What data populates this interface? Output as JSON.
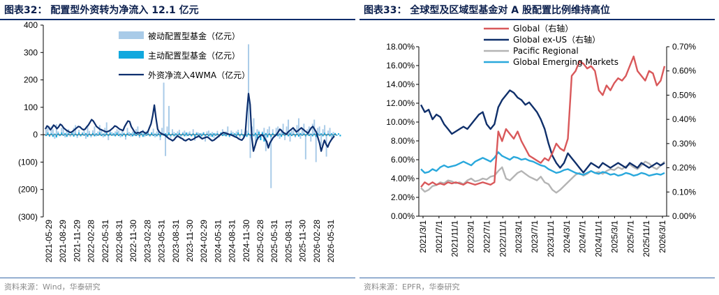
{
  "left": {
    "title": "图表32：  配置型外资转为净流入 12.1 亿元",
    "source": "资料来源：Wind，华泰研究",
    "chart_data": {
      "type": "bar+line",
      "yticks": [
        "400",
        "300",
        "200",
        "100",
        "0",
        "(100)",
        "(200)",
        "(300)"
      ],
      "ylim": [
        -300,
        400
      ],
      "xticks": [
        "2021-05-29",
        "2021-08-29",
        "2021-11-29",
        "2022-02-28",
        "2022-05-31",
        "2022-08-31",
        "2022-11-30",
        "2023-02-28",
        "2023-05-31",
        "2023-08-31",
        "2023-11-30",
        "2024-02-29",
        "2024-05-31",
        "2024-08-31",
        "2024-11-30",
        "2025-02-28",
        "2025-05-31",
        "2025-08-31",
        "2025-11-30",
        "2026-02-28",
        "2026-05-31"
      ],
      "legend_position": "top-right",
      "series": [
        {
          "name": "被动配置型基金（亿元）",
          "type": "bar",
          "color": "#a9cbe8",
          "values": [
            18,
            25,
            -8,
            30,
            20,
            -15,
            38,
            12,
            -5,
            25,
            30,
            -10,
            15,
            20,
            -8,
            10,
            25,
            35,
            -12,
            18,
            -6,
            10,
            22,
            -15,
            30,
            14,
            -10,
            16,
            30,
            -6,
            12,
            35,
            20,
            -10,
            25,
            45,
            -20,
            15,
            10,
            -5,
            12,
            20,
            15,
            -10,
            16,
            8,
            -18,
            25,
            10,
            -8,
            12,
            -5,
            20,
            30,
            -12,
            10,
            18,
            -8,
            14,
            9,
            -6,
            10,
            22,
            -10,
            12,
            15,
            -20,
            25,
            190,
            -78,
            30,
            105,
            -12,
            20,
            10,
            -5,
            12,
            18,
            -8,
            10,
            15,
            -6,
            8,
            12,
            -5,
            20,
            -22,
            10,
            8,
            -14,
            6,
            10,
            -25,
            12,
            15,
            -8,
            10,
            -12,
            6,
            14,
            -10,
            8,
            20,
            -5,
            12,
            30,
            -10,
            15,
            10,
            -8,
            12,
            18,
            -12,
            20,
            -6,
            10,
            15,
            330,
            -85,
            30,
            60,
            -40,
            20,
            15,
            -10,
            12,
            25,
            -60,
            20,
            30,
            -195,
            20,
            -10,
            25,
            30,
            -15,
            20,
            40,
            -20,
            30,
            55,
            -25,
            15,
            20,
            -10,
            35,
            60,
            -15,
            25,
            40,
            -90,
            20,
            30,
            -25,
            40,
            55,
            -100,
            25,
            30,
            -40,
            20,
            35,
            -80,
            15,
            25,
            -15,
            10
          ]
        },
        {
          "name": "主动配置型基金（亿元）",
          "type": "bar",
          "color": "#11a8de",
          "values": [
            -5,
            8,
            -6,
            5,
            -8,
            4,
            -10,
            6,
            -5,
            8,
            -4,
            6,
            -8,
            5,
            -3,
            6,
            -7,
            4,
            -5,
            8,
            -6,
            5,
            -4,
            6,
            -8,
            4,
            -5,
            6,
            -6,
            5,
            -4,
            8,
            -5,
            4,
            -6,
            6,
            -5,
            7,
            -4,
            5,
            -6,
            8,
            -5,
            4,
            -6,
            5,
            -7,
            6,
            -4,
            5,
            -6,
            8,
            -5,
            4,
            -6,
            5,
            -8,
            6,
            -4,
            5,
            -6,
            7,
            -5,
            4,
            -6,
            5,
            -8,
            6,
            -4,
            5,
            -6,
            8,
            -5,
            4,
            -6,
            5,
            -7,
            6,
            -4,
            5,
            -6,
            8,
            -5,
            4,
            -6,
            5,
            -8,
            6,
            -4,
            5,
            -6,
            7,
            -5,
            4,
            -6,
            5,
            -8,
            6,
            -4,
            5,
            -6,
            8,
            -5,
            4,
            -6,
            5,
            -7,
            6,
            -4,
            5,
            -6,
            8,
            -5,
            4,
            -6,
            5,
            -8,
            6,
            -4,
            5,
            -6,
            7,
            -15,
            10,
            -20,
            8,
            -25,
            6,
            -10,
            5,
            -8,
            6,
            -5,
            4,
            -6,
            5,
            -8,
            6,
            -4,
            5,
            -6,
            8,
            -5,
            4,
            -6,
            5,
            -7,
            6,
            -4,
            5,
            -6,
            8,
            -5,
            4,
            -6,
            5,
            -8,
            6,
            -4,
            5,
            -6,
            7,
            -5,
            4,
            -6,
            5,
            -8,
            6,
            -4,
            5,
            -6
          ]
        },
        {
          "name": "外资净流入4WMA（亿元）",
          "type": "line",
          "color": "#0d2f6e",
          "values": [
            20,
            32,
            28,
            18,
            25,
            35,
            30,
            22,
            28,
            38,
            34,
            25,
            20,
            15,
            12,
            8,
            10,
            15,
            20,
            25,
            30,
            28,
            22,
            18,
            20,
            28,
            35,
            45,
            55,
            50,
            40,
            30,
            25,
            20,
            18,
            15,
            12,
            10,
            12,
            15,
            20,
            25,
            32,
            30,
            25,
            20,
            18,
            15,
            30,
            40,
            50,
            48,
            30,
            20,
            10,
            5,
            8,
            6,
            10,
            12,
            8,
            5,
            10,
            25,
            40,
            70,
            108,
            60,
            20,
            10,
            5,
            2,
            0,
            -5,
            -10,
            -15,
            -18,
            -22,
            -18,
            -10,
            -5,
            -8,
            -12,
            -15,
            -20,
            -22,
            -18,
            -15,
            -20,
            -18,
            -15,
            -10,
            -8,
            -5,
            -10,
            -15,
            -12,
            -10,
            -8,
            -12,
            -18,
            -22,
            -20,
            -15,
            -10,
            -5,
            0,
            5,
            8,
            6,
            4,
            2,
            0,
            -2,
            -5,
            -8,
            -10,
            -15,
            -18,
            -20,
            -12,
            0,
            80,
            150,
            110,
            -10,
            -60,
            -40,
            -20,
            -10,
            -5,
            0,
            -5,
            -15,
            -25,
            -48,
            -30,
            -20,
            -10,
            -5,
            0,
            10,
            20,
            15,
            8,
            5,
            2,
            10,
            15,
            20,
            25,
            18,
            10,
            15,
            20,
            25,
            20,
            15,
            10,
            5,
            15,
            25,
            30,
            20,
            10,
            -10,
            -30,
            -60,
            -40,
            -20,
            -35,
            -45,
            -30,
            -20,
            -12,
            -5
          ]
        }
      ]
    }
  },
  "right": {
    "title": "图表33：  全球型及区域型基金对 A 股配置比例维持高位",
    "source": "资料来源：EPFR，华泰研究",
    "chart_data": {
      "type": "line",
      "yticks_left": [
        "18.00%",
        "16.00%",
        "14.00%",
        "12.00%",
        "10.00%",
        "8.00%",
        "6.00%",
        "4.00%",
        "2.00%",
        "0.00%"
      ],
      "ylim_left": [
        0,
        18
      ],
      "yticks_right": [
        "0.70%",
        "0.60%",
        "0.50%",
        "0.40%",
        "0.30%",
        "0.20%",
        "0.10%",
        "0.00%"
      ],
      "ylim_right": [
        0,
        0.7
      ],
      "xticks": [
        "2021/3/1",
        "2021/7/1",
        "2021/11/1",
        "2022/3/1",
        "2022/7/1",
        "2022/11/1",
        "2023/3/1",
        "2023/7/1",
        "2023/11/1",
        "2024/3/1",
        "2024/7/1",
        "2024/11/1",
        "2025/3/1",
        "2025/7/1",
        "2025/11/1",
        "2026/3/1"
      ],
      "legend_position": "top-left",
      "series": [
        {
          "name": "Global（右轴）",
          "axis": "right",
          "color": "#d9585a",
          "values": [
            0.12,
            0.14,
            0.13,
            0.14,
            0.13,
            0.135,
            0.13,
            0.14,
            0.135,
            0.14,
            0.135,
            0.13,
            0.14,
            0.135,
            0.13,
            0.135,
            0.14,
            0.135,
            0.13,
            0.14,
            0.35,
            0.31,
            0.36,
            0.34,
            0.32,
            0.35,
            0.31,
            0.28,
            0.25,
            0.24,
            0.23,
            0.22,
            0.24,
            0.23,
            0.26,
            0.3,
            0.28,
            0.27,
            0.32,
            0.58,
            0.6,
            0.64,
            0.63,
            0.61,
            0.62,
            0.6,
            0.52,
            0.5,
            0.54,
            0.52,
            0.55,
            0.57,
            0.56,
            0.58,
            0.62,
            0.66,
            0.6,
            0.58,
            0.56,
            0.6,
            0.59,
            0.54,
            0.56,
            0.62
          ]
        },
        {
          "name": "Global ex-US（右轴）",
          "axis": "right",
          "color": "#0f2f6a",
          "values": [
            0.46,
            0.43,
            0.44,
            0.4,
            0.42,
            0.41,
            0.38,
            0.36,
            0.34,
            0.35,
            0.36,
            0.37,
            0.36,
            0.38,
            0.4,
            0.42,
            0.43,
            0.38,
            0.36,
            0.38,
            0.45,
            0.48,
            0.5,
            0.52,
            0.51,
            0.49,
            0.48,
            0.46,
            0.47,
            0.45,
            0.43,
            0.4,
            0.36,
            0.3,
            0.25,
            0.22,
            0.2,
            0.22,
            0.26,
            0.24,
            0.22,
            0.2,
            0.18,
            0.2,
            0.22,
            0.21,
            0.2,
            0.22,
            0.21,
            0.2,
            0.21,
            0.22,
            0.21,
            0.2,
            0.22,
            0.21,
            0.2,
            0.22,
            0.21,
            0.2,
            0.21,
            0.22,
            0.21,
            0.22
          ]
        },
        {
          "name": "Pacific Regional",
          "axis": "left",
          "color": "#b4b4b4",
          "values": [
            3.0,
            2.6,
            2.8,
            3.2,
            3.3,
            3.6,
            3.5,
            3.8,
            3.7,
            3.5,
            3.6,
            3.4,
            3.8,
            4.0,
            3.7,
            3.8,
            4.0,
            3.9,
            4.2,
            4.3,
            4.8,
            5.2,
            4.0,
            3.8,
            4.2,
            4.6,
            4.8,
            4.5,
            4.2,
            4.0,
            3.8,
            4.2,
            3.6,
            3.4,
            2.8,
            2.5,
            2.8,
            3.2,
            3.6,
            4.0,
            4.4,
            4.6,
            4.3,
            4.5,
            4.8,
            4.6,
            4.7,
            4.5,
            4.8,
            5.0,
            4.9,
            5.2,
            5.0,
            5.3,
            5.5,
            5.2,
            5.0,
            5.4,
            5.8,
            5.6,
            5.2,
            5.0,
            5.4,
            5.8
          ]
        },
        {
          "name": "Global Emerging Markets",
          "axis": "left",
          "color": "#29a8dc",
          "values": [
            5.0,
            4.6,
            4.7,
            5.0,
            4.8,
            5.2,
            5.4,
            5.2,
            5.3,
            5.4,
            5.6,
            5.8,
            5.6,
            5.4,
            5.8,
            6.0,
            6.2,
            6.0,
            5.8,
            6.2,
            6.8,
            6.4,
            6.2,
            6.0,
            6.3,
            6.2,
            6.0,
            6.1,
            5.9,
            5.8,
            5.6,
            5.4,
            5.3,
            5.0,
            4.8,
            4.6,
            4.7,
            4.9,
            5.0,
            4.8,
            4.6,
            4.5,
            4.4,
            4.6,
            4.8,
            4.6,
            4.5,
            4.7,
            4.6,
            4.4,
            4.5,
            4.3,
            4.4,
            4.6,
            4.5,
            4.3,
            4.4,
            4.6,
            4.5,
            4.3,
            4.4,
            4.5,
            4.4,
            4.6
          ]
        }
      ]
    }
  }
}
